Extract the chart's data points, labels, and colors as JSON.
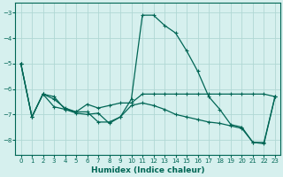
{
  "title": "",
  "xlabel": "Humidex (Indice chaleur)",
  "background_color": "#d6f0ee",
  "grid_color": "#b0d8d4",
  "line_color": "#006655",
  "xlim": [
    -0.5,
    23.5
  ],
  "ylim": [
    -8.6,
    -2.6
  ],
  "yticks": [
    -8,
    -7,
    -6,
    -5,
    -4,
    -3
  ],
  "xticks": [
    0,
    1,
    2,
    3,
    4,
    5,
    6,
    7,
    8,
    9,
    10,
    11,
    12,
    13,
    14,
    15,
    16,
    17,
    18,
    19,
    20,
    21,
    22,
    23
  ],
  "line1_x": [
    0,
    1,
    2,
    3,
    4,
    5,
    6,
    7,
    8,
    9,
    10,
    11,
    12,
    13,
    14,
    15,
    16,
    17,
    18,
    19,
    20,
    21,
    22,
    23
  ],
  "line1_y": [
    -5.0,
    -7.1,
    -6.2,
    -6.3,
    -6.8,
    -6.9,
    -6.9,
    -7.3,
    -7.3,
    -7.1,
    -6.4,
    -3.1,
    -3.1,
    -3.5,
    -3.8,
    -4.5,
    -5.3,
    -6.3,
    -6.8,
    -7.4,
    -7.5,
    -8.1,
    -8.1,
    -6.3
  ],
  "line2_x": [
    0,
    1,
    2,
    3,
    4,
    5,
    6,
    7,
    8,
    9,
    10,
    11,
    12,
    13,
    14,
    15,
    16,
    17,
    18,
    19,
    20,
    21,
    22,
    23
  ],
  "line2_y": [
    -5.0,
    -7.1,
    -6.2,
    -6.4,
    -6.75,
    -6.9,
    -6.6,
    -6.75,
    -6.65,
    -6.55,
    -6.55,
    -6.2,
    -6.2,
    -6.2,
    -6.2,
    -6.2,
    -6.2,
    -6.2,
    -6.2,
    -6.2,
    -6.2,
    -6.2,
    -6.2,
    -6.3
  ],
  "line3_x": [
    0,
    1,
    2,
    3,
    4,
    5,
    6,
    7,
    8,
    9,
    10,
    11,
    12,
    13,
    14,
    15,
    16,
    17,
    18,
    19,
    20,
    21,
    22,
    23
  ],
  "line3_y": [
    -5.0,
    -7.1,
    -6.2,
    -6.7,
    -6.8,
    -6.95,
    -7.0,
    -6.95,
    -7.35,
    -7.1,
    -6.65,
    -6.55,
    -6.65,
    -6.8,
    -7.0,
    -7.1,
    -7.2,
    -7.3,
    -7.35,
    -7.45,
    -7.55,
    -8.1,
    -8.15,
    -6.3
  ]
}
